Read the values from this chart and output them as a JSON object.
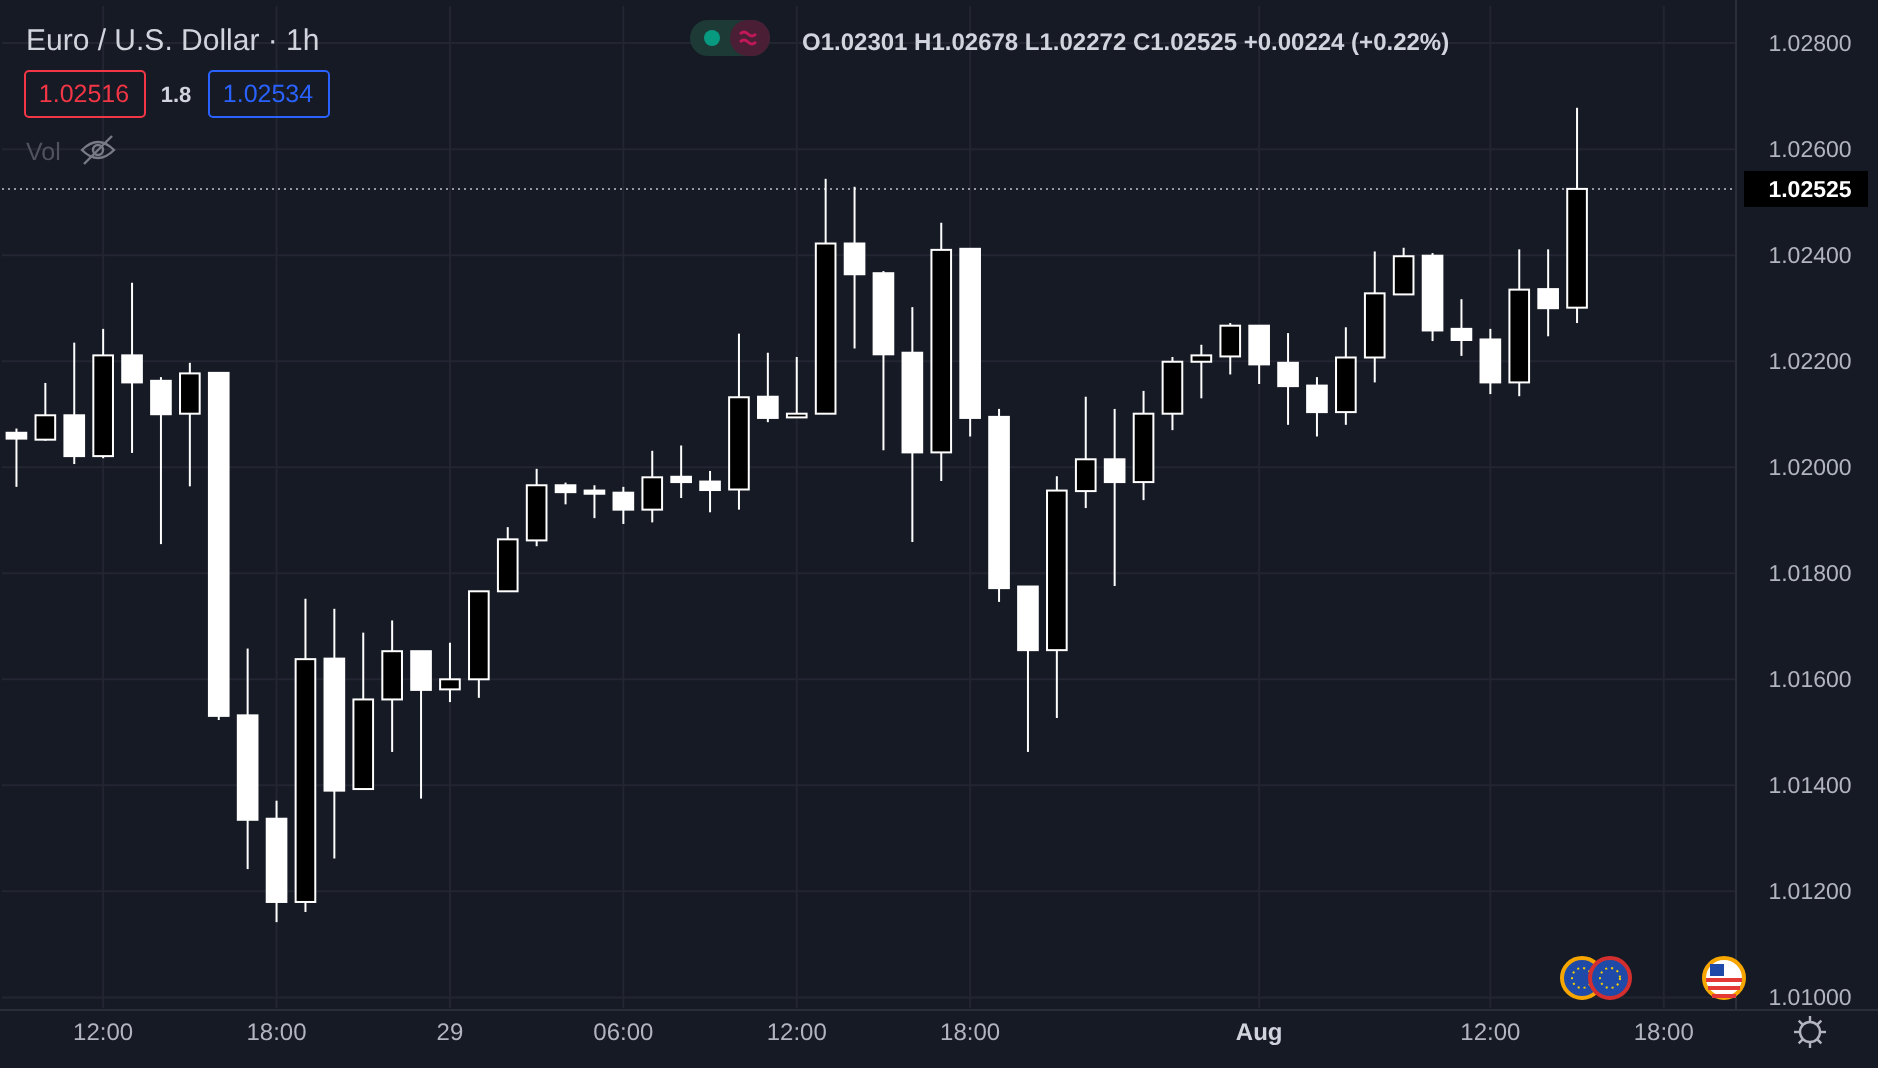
{
  "chart_data": {
    "type": "candlestick",
    "title": "Euro / U.S. Dollar · 1h",
    "annotations": [
      "O1.02301 H1.02678 L1.02272 C1.02525 +0.00224 (+0.22%)",
      "1.02516",
      "1.8",
      "1.02534",
      "Vol"
    ],
    "color": "#ffffff",
    "grid": true,
    "categories": [
      null,
      null,
      null,
      "12:00",
      null,
      null,
      null,
      null,
      null,
      "18:00",
      null,
      null,
      null,
      null,
      null,
      "29",
      null,
      null,
      null,
      null,
      null,
      "06:00",
      null,
      null,
      null,
      null,
      null,
      "12:00",
      null,
      null,
      null,
      null,
      null,
      "18:00",
      null,
      null,
      null,
      null,
      null,
      null,
      null,
      null,
      null,
      "Aug",
      null,
      null,
      null,
      null,
      null,
      null,
      null,
      "12:00",
      null,
      null,
      null,
      null,
      null,
      "18:00",
      null,
      null
    ],
    "ylim": [
      1.0098,
      1.0287
    ],
    "yticks": [
      {
        "value": 1.01,
        "label": "1.01000"
      },
      {
        "value": 1.012,
        "label": "1.01200"
      },
      {
        "value": 1.014,
        "label": "1.01400"
      },
      {
        "value": 1.016,
        "label": "1.01600"
      },
      {
        "value": 1.018,
        "label": "1.01800"
      },
      {
        "value": 1.02,
        "label": "1.02000"
      },
      {
        "value": 1.022,
        "label": "1.02200"
      },
      {
        "value": 1.024,
        "label": "1.02400"
      },
      {
        "value": 1.026,
        "label": "1.02600"
      },
      {
        "value": 1.028,
        "label": "1.02800"
      }
    ],
    "ref_lines": [
      {
        "axis": "y",
        "value": 1.02525,
        "label": "1.02525",
        "line_style": "dotted"
      }
    ],
    "ohlc": [
      [
        1.02065,
        1.02073,
        1.01963,
        1.02054
      ],
      [
        1.02052,
        1.02159,
        1.0205,
        1.02098
      ],
      [
        1.02098,
        1.02235,
        1.02006,
        1.02021
      ],
      [
        1.02021,
        1.02261,
        1.02017,
        1.02211
      ],
      [
        1.02211,
        1.02348,
        1.02027,
        1.0216
      ],
      [
        1.02163,
        1.0217,
        1.01855,
        1.021
      ],
      [
        1.02101,
        1.02197,
        1.01964,
        1.02177
      ],
      [
        1.02178,
        1.02178,
        1.01523,
        1.01531
      ],
      [
        1.01532,
        1.01658,
        1.01242,
        1.01335
      ],
      [
        1.01337,
        1.01371,
        1.01142,
        1.0118
      ],
      [
        1.0118,
        1.01752,
        1.01161,
        1.01638
      ],
      [
        1.01639,
        1.01733,
        1.01262,
        1.0139
      ],
      [
        1.01393,
        1.01688,
        1.01393,
        1.01562
      ],
      [
        1.01562,
        1.01711,
        1.01463,
        1.01653
      ],
      [
        1.01653,
        1.01653,
        1.01375,
        1.0158
      ],
      [
        1.01581,
        1.01669,
        1.01557,
        1.016
      ],
      [
        1.016,
        1.01766,
        1.01565,
        1.01766
      ],
      [
        1.01766,
        1.01887,
        1.01766,
        1.01864
      ],
      [
        1.01862,
        1.01997,
        1.01851,
        1.01966
      ],
      [
        1.01966,
        1.01971,
        1.0193,
        1.01953
      ],
      [
        1.01956,
        1.01966,
        1.01904,
        1.0195
      ],
      [
        1.01952,
        1.01963,
        1.01893,
        1.0192
      ],
      [
        1.0192,
        1.02031,
        1.01896,
        1.01981
      ],
      [
        1.01982,
        1.02041,
        1.01942,
        1.01972
      ],
      [
        1.01973,
        1.01993,
        1.01915,
        1.01957
      ],
      [
        1.01958,
        1.02252,
        1.0192,
        1.02132
      ],
      [
        1.02133,
        1.02216,
        1.02085,
        1.02093
      ],
      [
        1.02094,
        1.02208,
        1.02094,
        1.02101
      ],
      [
        1.02101,
        1.02544,
        1.02101,
        1.02422
      ],
      [
        1.02422,
        1.02529,
        1.02224,
        1.02364
      ],
      [
        1.02366,
        1.0237,
        1.02032,
        1.02213
      ],
      [
        1.02216,
        1.02302,
        1.01859,
        1.02028
      ],
      [
        1.02028,
        1.02461,
        1.01974,
        1.0241
      ],
      [
        1.02412,
        1.02412,
        1.02058,
        1.02093
      ],
      [
        1.02095,
        1.0211,
        1.01746,
        1.01772
      ],
      [
        1.01775,
        1.01775,
        1.01463,
        1.01655
      ],
      [
        1.01655,
        1.01983,
        1.01527,
        1.01956
      ],
      [
        1.01955,
        1.02133,
        1.01923,
        1.02015
      ],
      [
        1.02015,
        1.0211,
        1.01776,
        1.01972
      ],
      [
        1.01972,
        1.02144,
        1.01938,
        1.02101
      ],
      [
        1.02101,
        1.02208,
        1.0207,
        1.02199
      ],
      [
        1.02199,
        1.02231,
        1.0213,
        1.02211
      ],
      [
        1.02209,
        1.02272,
        1.02175,
        1.02267
      ],
      [
        1.02267,
        1.02267,
        1.02157,
        1.02194
      ],
      [
        1.02197,
        1.02253,
        1.0208,
        1.02153
      ],
      [
        1.02154,
        1.0217,
        1.02058,
        1.02104
      ],
      [
        1.02104,
        1.02264,
        1.0208,
        1.02207
      ],
      [
        1.02207,
        1.02407,
        1.0216,
        1.02328
      ],
      [
        1.02326,
        1.02414,
        1.02326,
        1.02398
      ],
      [
        1.02399,
        1.02404,
        1.02238,
        1.02258
      ],
      [
        1.02261,
        1.02317,
        1.0221,
        1.0224
      ],
      [
        1.02241,
        1.02261,
        1.02138,
        1.0216
      ],
      [
        1.0216,
        1.02411,
        1.02134,
        1.02335
      ],
      [
        1.02336,
        1.02411,
        1.02247,
        1.023
      ],
      [
        1.02301,
        1.02678,
        1.02272,
        1.02525
      ],
      null,
      null,
      null,
      null,
      null
    ]
  }
}
